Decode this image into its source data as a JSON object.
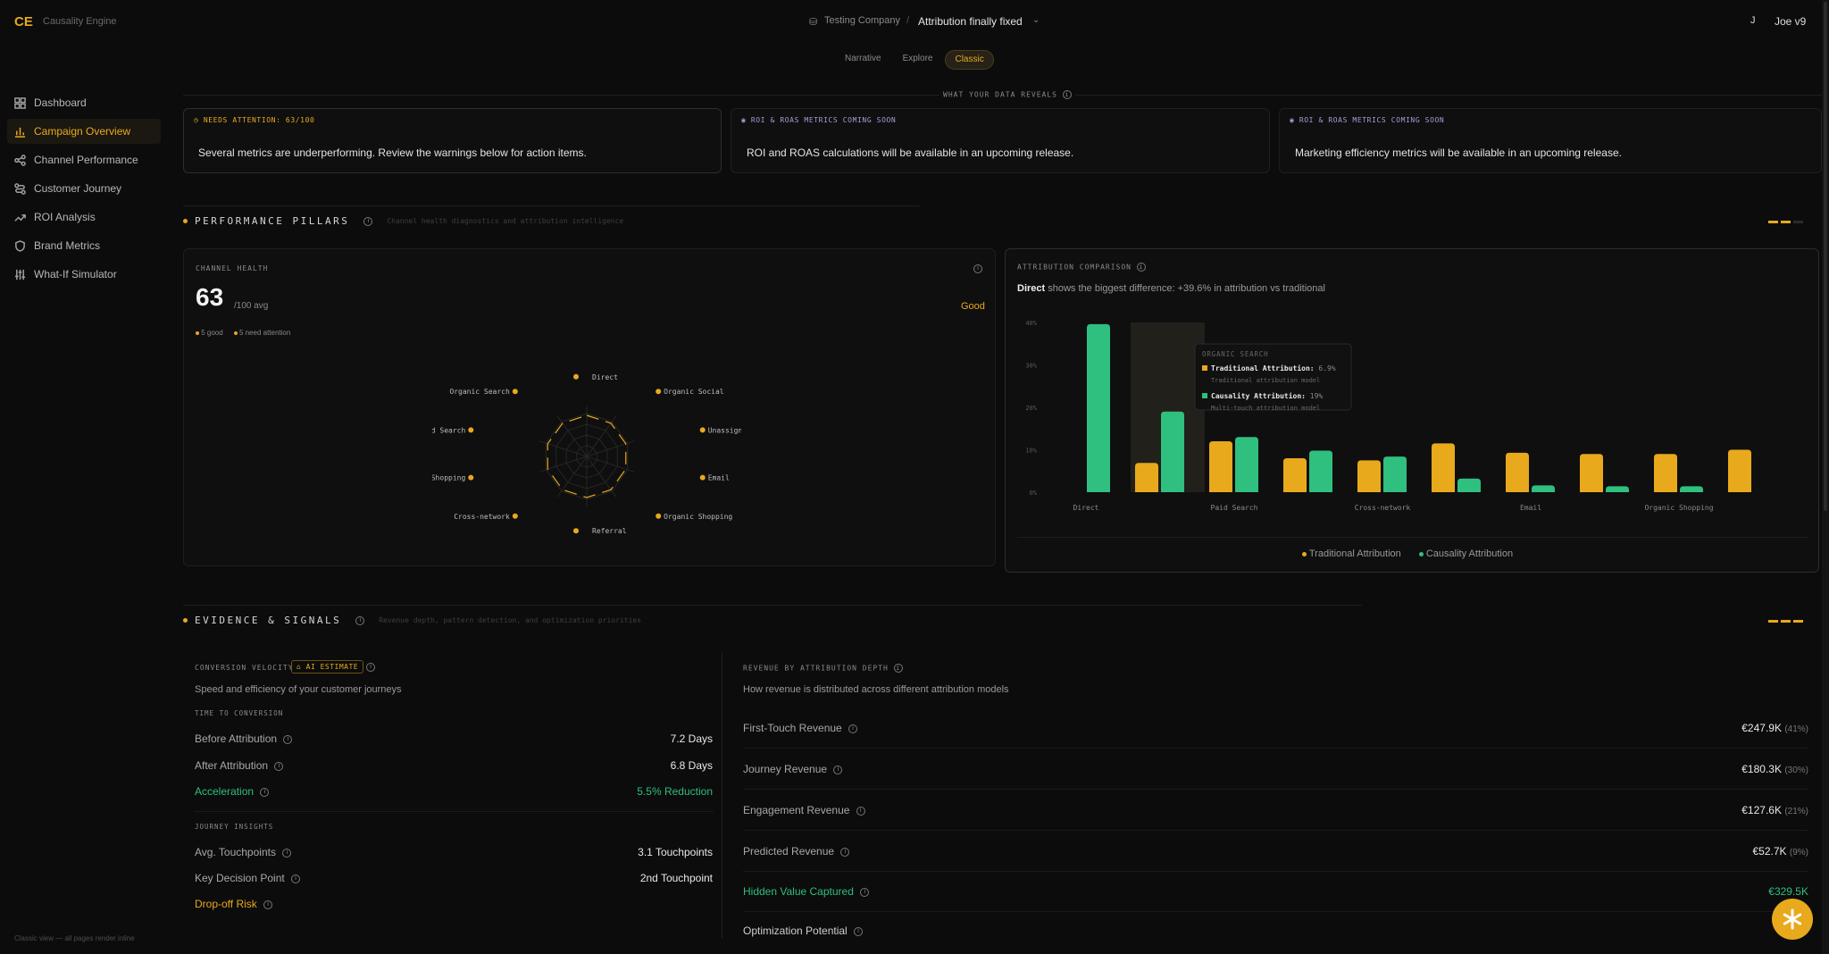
{
  "app": {
    "logo": "CE",
    "name": "Causality Engine"
  },
  "header": {
    "company": "Testing Company",
    "separator": "/",
    "project": "Attribution finally fixed",
    "user_initial": "J",
    "user_name": "Joe v9"
  },
  "view_tabs": [
    "Narrative",
    "Explore",
    "Classic"
  ],
  "active_view": "Classic",
  "sidebar": {
    "items": [
      {
        "label": "Dashboard",
        "icon": "grid-icon"
      },
      {
        "label": "Campaign Overview",
        "icon": "bar-chart-icon",
        "active": true
      },
      {
        "label": "Channel Performance",
        "icon": "share-icon"
      },
      {
        "label": "Customer Journey",
        "icon": "route-icon"
      },
      {
        "label": "ROI Analysis",
        "icon": "trend-up-icon"
      },
      {
        "label": "Brand Metrics",
        "icon": "shield-icon"
      },
      {
        "label": "What-If Simulator",
        "icon": "sliders-icon"
      }
    ],
    "footer": "Classic view — all pages render inline"
  },
  "reveals": {
    "kicker": "WHAT YOUR DATA REVEALS",
    "cards": [
      {
        "tag": "NEEDS ATTENTION: 63/100",
        "text": "Several metrics are underperforming. Review the warnings below for action items."
      },
      {
        "tag": "ROI & ROAS METRICS COMING SOON",
        "text": "ROI and ROAS calculations will be available in an upcoming release."
      },
      {
        "tag": "ROI & ROAS METRICS COMING SOON",
        "text": "Marketing efficiency metrics will be available in an upcoming release."
      }
    ]
  },
  "pillars": {
    "title": "PERFORMANCE PILLARS",
    "subtitle": "Channel health diagnostics and attribution intelligence",
    "health": {
      "kicker": "CHANNEL HEALTH",
      "score": "63",
      "score_suffix": "/100 avg",
      "status": "Good",
      "legend_good": "5 good",
      "legend_attention": "5 need attention",
      "channels": [
        "Direct",
        "Organic Social",
        "Unassigned",
        "Email",
        "Organic Shopping",
        "Referral",
        "Cross-network",
        "Paid Shopping",
        "Paid Search",
        "Organic Search"
      ]
    }
  },
  "chart_data": {
    "type": "bar",
    "kicker": "ATTRIBUTION COMPARISON",
    "insight_channel": "Direct",
    "insight_text": "shows the biggest difference: +39.6% in attribution vs traditional",
    "categories": [
      "Direct",
      "Organic Search",
      "Paid Search",
      "Organic Social",
      "Cross-network",
      "Unassigned",
      "Email",
      "Referral",
      "Organic Shopping",
      "Paid Shopping"
    ],
    "tick_labels": [
      "Direct",
      "Paid Search",
      "Cross-network",
      "Email",
      "Organic Shopping"
    ],
    "series": [
      {
        "name": "Traditional Attribution",
        "color": "#e8a91d",
        "values": [
          0,
          6.9,
          12,
          8,
          7.5,
          11.5,
          9.3,
          9,
          9,
          10
        ]
      },
      {
        "name": "Causality Attribution",
        "color": "#2fbf7f",
        "values": [
          39.6,
          19,
          13,
          9.8,
          8.4,
          3.2,
          1.6,
          1.4,
          1.4,
          0.8
        ]
      }
    ],
    "yticks": [
      "40%",
      "30%",
      "20%",
      "10%",
      "0%"
    ],
    "ylim": [
      0,
      40
    ],
    "tooltip": {
      "title": "ORGANIC SEARCH",
      "line1_label": "Traditional Attribution:",
      "line1_value": "6.9%",
      "line1_sub": "Traditional attribution model",
      "line2_label": "Causality Attribution:",
      "line2_value": "19%",
      "line2_sub": "Multi-touch attribution model"
    }
  },
  "evidence": {
    "title": "EVIDENCE & SIGNALS",
    "subtitle": "Revenue depth, pattern detection, and optimization priorities",
    "velocity": {
      "kicker": "CONVERSION VELOCITY",
      "badge": "AI ESTIMATE",
      "desc": "Speed and efficiency of your customer journeys",
      "section1": "TIME TO CONVERSION",
      "before_label": "Before Attribution",
      "before_value": "7.2 Days",
      "after_label": "After Attribution",
      "after_value": "6.8 Days",
      "accel_label": "Acceleration",
      "accel_value": "5.5% Reduction",
      "section2": "JOURNEY INSIGHTS",
      "touch_label": "Avg. Touchpoints",
      "touch_value": "3.1 Touchpoints",
      "key_label": "Key Decision Point",
      "key_value": "2nd Touchpoint",
      "drop_label": "Drop-off Risk"
    },
    "revenue": {
      "kicker": "REVENUE BY ATTRIBUTION DEPTH",
      "desc": "How revenue is distributed across different attribution models",
      "rows": [
        {
          "label": "First-Touch Revenue",
          "value": "€247.9K",
          "pct": "(41%)"
        },
        {
          "label": "Journey Revenue",
          "value": "€180.3K",
          "pct": "(30%)"
        },
        {
          "label": "Engagement Revenue",
          "value": "€127.6K",
          "pct": "(21%)"
        },
        {
          "label": "Predicted Revenue",
          "value": "€52.7K",
          "pct": "(9%)"
        }
      ],
      "hidden_label": "Hidden Value Captured",
      "hidden_value": "€329.5K",
      "optim_label": "Optimization Potential"
    }
  }
}
